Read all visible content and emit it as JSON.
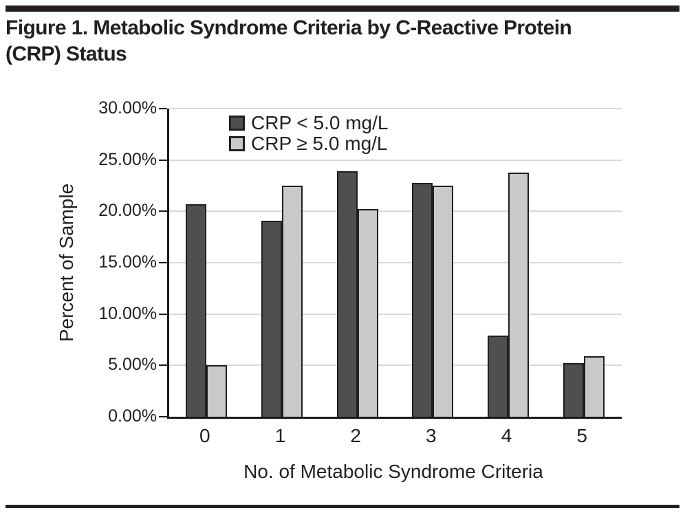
{
  "page": {
    "title_line1": "Figure 1. Metabolic Syndrome Criteria by C-Reactive Protein",
    "title_line2": "(CRP) Status"
  },
  "colors": {
    "series_dark": "#4f4f4f",
    "series_light": "#c9c9c9",
    "bar_outline": "#1f1f1f",
    "axis": "#1a1a1a",
    "gridline": "#d9d9d9",
    "text": "#231f20",
    "rule": "#231f20"
  },
  "chart_data": {
    "type": "bar",
    "title": "Figure 1. Metabolic Syndrome Criteria by C-Reactive Protein (CRP) Status",
    "xlabel": "No. of Metabolic Syndrome Criteria",
    "ylabel": "Percent of Sample",
    "categories": [
      "0",
      "1",
      "2",
      "3",
      "4",
      "5"
    ],
    "series": [
      {
        "key": "crp-low",
        "name": "CRP < 5.0 mg/L",
        "color_key": "series_dark",
        "values": [
          20.7,
          19.1,
          23.9,
          22.8,
          7.9,
          5.2
        ]
      },
      {
        "key": "crp-high",
        "name": "CRP ≥ 5.0 mg/L",
        "color_key": "series_light",
        "values": [
          5.0,
          22.5,
          20.2,
          22.5,
          23.8,
          5.9
        ]
      }
    ],
    "ylim": [
      0,
      30
    ],
    "ytick_step": 5,
    "ytick_labels": [
      "0.00%",
      "5.00%",
      "10.00%",
      "15.00%",
      "20.00%",
      "25.00%",
      "30.00%"
    ],
    "grid": true,
    "legend_position": "top-left-inside"
  }
}
